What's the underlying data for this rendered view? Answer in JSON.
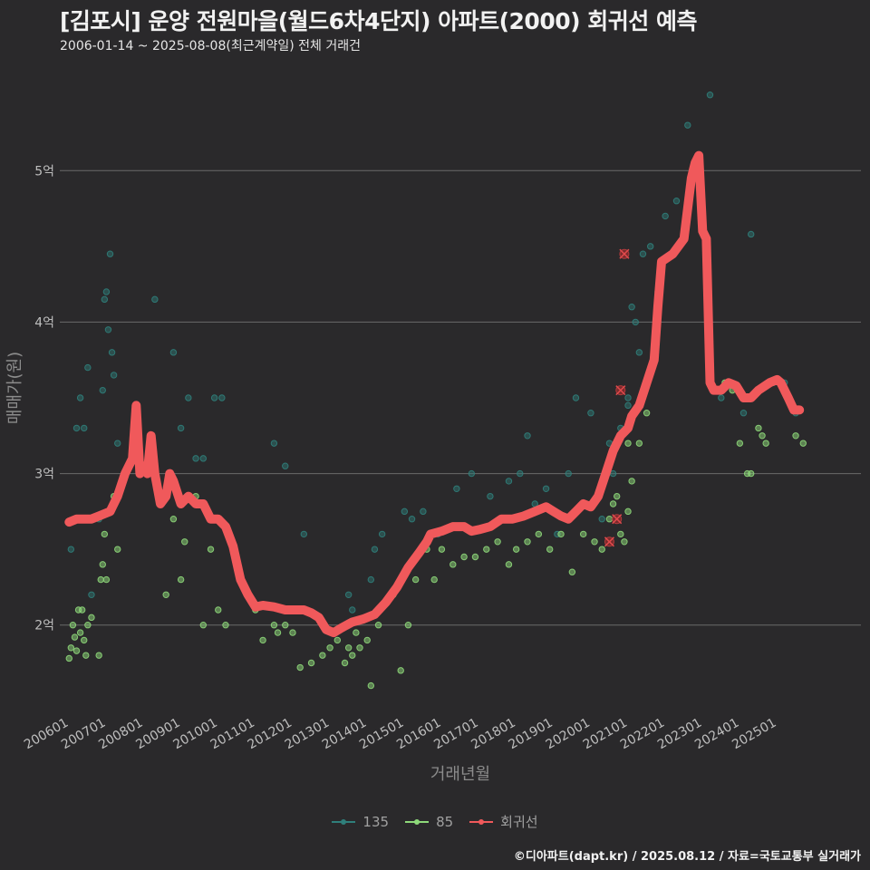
{
  "title": "[김포시] 운양 전원마을(월드6차4단지) 아파트(2000) 회귀선 예측",
  "subtitle": "2006-01-14 ~ 2025-08-08(최근계약일) 전체 거래건",
  "footer": "©디아파트(dapt.kr) / 2025.08.12 / 자료=국토교통부 실거래가",
  "legend": [
    {
      "label": "135",
      "color": "#2f7f7b"
    },
    {
      "label": "85",
      "color": "#8ed97a"
    },
    {
      "label": "회귀선",
      "color": "#f0595b"
    }
  ],
  "chart_data": {
    "type": "scatter",
    "xlabel": "거래년월",
    "ylabel": "매매가(원)",
    "xlim": [
      2005.75,
      2027.25
    ],
    "ylim": [
      1.4,
      5.6
    ],
    "yticks": [
      2,
      3,
      4,
      5
    ],
    "ytick_labels": [
      "2억",
      "3억",
      "4억",
      "5억"
    ],
    "xtick_labels": [
      "200601",
      "200701",
      "200801",
      "200901",
      "201001",
      "201101",
      "201201",
      "201301",
      "201401",
      "201501",
      "201601",
      "201701",
      "201801",
      "201901",
      "202001",
      "202101",
      "202201",
      "202301",
      "202401",
      "202501"
    ],
    "series": [
      {
        "name": "135",
        "color": "#2f7f7b",
        "points": [
          [
            2006.05,
            2.5
          ],
          [
            2006.2,
            3.3
          ],
          [
            2006.3,
            3.5
          ],
          [
            2006.4,
            3.3
          ],
          [
            2006.5,
            3.7
          ],
          [
            2006.6,
            2.2
          ],
          [
            2006.8,
            2.7
          ],
          [
            2006.9,
            3.55
          ],
          [
            2006.95,
            4.15
          ],
          [
            2007.0,
            4.2
          ],
          [
            2007.05,
            3.95
          ],
          [
            2007.1,
            4.45
          ],
          [
            2007.15,
            3.8
          ],
          [
            2007.2,
            3.65
          ],
          [
            2007.3,
            3.2
          ],
          [
            2007.5,
            3.0
          ],
          [
            2008.3,
            4.15
          ],
          [
            2008.8,
            3.8
          ],
          [
            2009.0,
            3.3
          ],
          [
            2009.2,
            3.5
          ],
          [
            2009.4,
            3.1
          ],
          [
            2009.6,
            3.1
          ],
          [
            2009.9,
            3.5
          ],
          [
            2010.1,
            3.5
          ],
          [
            2011.5,
            3.2
          ],
          [
            2011.8,
            3.05
          ],
          [
            2012.3,
            2.6
          ],
          [
            2013.5,
            2.2
          ],
          [
            2013.6,
            2.1
          ],
          [
            2014.1,
            2.3
          ],
          [
            2014.2,
            2.5
          ],
          [
            2014.4,
            2.6
          ],
          [
            2015.0,
            2.75
          ],
          [
            2015.2,
            2.7
          ],
          [
            2015.5,
            2.75
          ],
          [
            2015.9,
            2.6
          ],
          [
            2016.4,
            2.9
          ],
          [
            2016.8,
            3.0
          ],
          [
            2017.3,
            2.85
          ],
          [
            2017.8,
            2.95
          ],
          [
            2018.1,
            3.0
          ],
          [
            2018.3,
            3.25
          ],
          [
            2018.5,
            2.8
          ],
          [
            2018.8,
            2.9
          ],
          [
            2019.1,
            2.6
          ],
          [
            2019.4,
            3.0
          ],
          [
            2019.6,
            3.5
          ],
          [
            2020.0,
            3.4
          ],
          [
            2020.3,
            2.7
          ],
          [
            2020.5,
            3.2
          ],
          [
            2020.6,
            3.0
          ],
          [
            2020.8,
            3.3
          ],
          [
            2021.0,
            3.5
          ],
          [
            2021.0,
            3.45
          ],
          [
            2021.1,
            4.1
          ],
          [
            2021.2,
            4.0
          ],
          [
            2021.3,
            3.8
          ],
          [
            2021.4,
            4.45
          ],
          [
            2021.6,
            4.5
          ],
          [
            2021.8,
            4.2
          ],
          [
            2022.0,
            4.7
          ],
          [
            2022.3,
            4.8
          ],
          [
            2022.6,
            5.3
          ],
          [
            2023.2,
            5.5
          ],
          [
            2023.5,
            3.5
          ],
          [
            2024.1,
            3.4
          ],
          [
            2024.2,
            3.5
          ],
          [
            2024.3,
            4.58
          ],
          [
            2024.9,
            3.6
          ],
          [
            2025.2,
            3.6
          ],
          [
            2025.5,
            3.4
          ]
        ]
      },
      {
        "name": "85",
        "color": "#8ed97a",
        "points": [
          [
            2006.0,
            1.78
          ],
          [
            2006.05,
            1.85
          ],
          [
            2006.1,
            2.0
          ],
          [
            2006.15,
            1.92
          ],
          [
            2006.2,
            1.83
          ],
          [
            2006.25,
            2.1
          ],
          [
            2006.3,
            1.95
          ],
          [
            2006.35,
            2.1
          ],
          [
            2006.4,
            1.9
          ],
          [
            2006.45,
            1.8
          ],
          [
            2006.5,
            2.0
          ],
          [
            2006.6,
            2.05
          ],
          [
            2006.8,
            1.8
          ],
          [
            2006.85,
            2.3
          ],
          [
            2006.9,
            2.4
          ],
          [
            2006.95,
            2.6
          ],
          [
            2007.0,
            2.3
          ],
          [
            2007.1,
            2.75
          ],
          [
            2007.2,
            2.85
          ],
          [
            2007.3,
            2.5
          ],
          [
            2008.0,
            3.05
          ],
          [
            2008.6,
            2.2
          ],
          [
            2008.8,
            2.7
          ],
          [
            2009.0,
            2.3
          ],
          [
            2009.1,
            2.55
          ],
          [
            2009.4,
            2.85
          ],
          [
            2009.6,
            2.0
          ],
          [
            2009.8,
            2.5
          ],
          [
            2010.0,
            2.1
          ],
          [
            2010.2,
            2.0
          ],
          [
            2010.6,
            2.3
          ],
          [
            2011.0,
            2.1
          ],
          [
            2011.2,
            1.9
          ],
          [
            2011.5,
            2.0
          ],
          [
            2011.6,
            1.95
          ],
          [
            2011.8,
            2.0
          ],
          [
            2012.0,
            1.95
          ],
          [
            2012.2,
            1.72
          ],
          [
            2012.5,
            1.75
          ],
          [
            2012.8,
            1.8
          ],
          [
            2013.0,
            1.85
          ],
          [
            2013.2,
            1.9
          ],
          [
            2013.4,
            1.75
          ],
          [
            2013.5,
            1.85
          ],
          [
            2013.6,
            1.8
          ],
          [
            2013.7,
            1.95
          ],
          [
            2013.8,
            1.85
          ],
          [
            2014.0,
            1.9
          ],
          [
            2014.1,
            1.6
          ],
          [
            2014.3,
            2.0
          ],
          [
            2014.5,
            2.15
          ],
          [
            2014.7,
            2.2
          ],
          [
            2014.9,
            1.7
          ],
          [
            2015.1,
            2.0
          ],
          [
            2015.3,
            2.3
          ],
          [
            2015.6,
            2.5
          ],
          [
            2015.8,
            2.3
          ],
          [
            2016.0,
            2.5
          ],
          [
            2016.3,
            2.4
          ],
          [
            2016.6,
            2.45
          ],
          [
            2016.9,
            2.45
          ],
          [
            2017.2,
            2.5
          ],
          [
            2017.5,
            2.55
          ],
          [
            2017.8,
            2.4
          ],
          [
            2018.0,
            2.5
          ],
          [
            2018.3,
            2.55
          ],
          [
            2018.6,
            2.6
          ],
          [
            2018.9,
            2.5
          ],
          [
            2019.2,
            2.6
          ],
          [
            2019.5,
            2.35
          ],
          [
            2019.8,
            2.6
          ],
          [
            2020.1,
            2.55
          ],
          [
            2020.3,
            2.5
          ],
          [
            2020.5,
            2.7
          ],
          [
            2020.6,
            2.8
          ],
          [
            2020.7,
            2.85
          ],
          [
            2020.8,
            2.6
          ],
          [
            2020.9,
            2.55
          ],
          [
            2021.0,
            2.75
          ],
          [
            2021.0,
            3.2
          ],
          [
            2021.1,
            2.95
          ],
          [
            2021.3,
            3.2
          ],
          [
            2021.5,
            3.4
          ],
          [
            2023.6,
            3.6
          ],
          [
            2023.8,
            3.55
          ],
          [
            2024.0,
            3.2
          ],
          [
            2024.2,
            3.0
          ],
          [
            2024.3,
            3.0
          ],
          [
            2024.5,
            3.3
          ],
          [
            2024.6,
            3.25
          ],
          [
            2024.7,
            3.2
          ],
          [
            2025.5,
            3.25
          ],
          [
            2025.7,
            3.2
          ]
        ]
      },
      {
        "name": "회귀선",
        "color": "#f0595b",
        "line": [
          [
            2006.0,
            2.68
          ],
          [
            2006.2,
            2.7
          ],
          [
            2006.6,
            2.7
          ],
          [
            2006.8,
            2.72
          ],
          [
            2007.1,
            2.75
          ],
          [
            2007.3,
            2.85
          ],
          [
            2007.5,
            3.0
          ],
          [
            2007.7,
            3.1
          ],
          [
            2007.8,
            3.45
          ],
          [
            2007.9,
            3.0
          ],
          [
            2008.0,
            3.05
          ],
          [
            2008.1,
            3.0
          ],
          [
            2008.2,
            3.25
          ],
          [
            2008.3,
            3.0
          ],
          [
            2008.45,
            2.8
          ],
          [
            2008.6,
            2.85
          ],
          [
            2008.7,
            3.0
          ],
          [
            2008.8,
            2.95
          ],
          [
            2009.0,
            2.8
          ],
          [
            2009.2,
            2.85
          ],
          [
            2009.4,
            2.8
          ],
          [
            2009.6,
            2.8
          ],
          [
            2009.8,
            2.7
          ],
          [
            2010.0,
            2.7
          ],
          [
            2010.2,
            2.65
          ],
          [
            2010.4,
            2.52
          ],
          [
            2010.6,
            2.3
          ],
          [
            2010.8,
            2.2
          ],
          [
            2011.0,
            2.12
          ],
          [
            2011.2,
            2.13
          ],
          [
            2011.5,
            2.12
          ],
          [
            2011.8,
            2.1
          ],
          [
            2012.0,
            2.1
          ],
          [
            2012.3,
            2.1
          ],
          [
            2012.5,
            2.08
          ],
          [
            2012.7,
            2.05
          ],
          [
            2012.9,
            1.97
          ],
          [
            2013.1,
            1.95
          ],
          [
            2013.3,
            1.98
          ],
          [
            2013.6,
            2.02
          ],
          [
            2013.9,
            2.04
          ],
          [
            2014.2,
            2.07
          ],
          [
            2014.5,
            2.15
          ],
          [
            2014.8,
            2.25
          ],
          [
            2015.1,
            2.38
          ],
          [
            2015.4,
            2.48
          ],
          [
            2015.6,
            2.55
          ],
          [
            2015.7,
            2.6
          ],
          [
            2016.0,
            2.62
          ],
          [
            2016.3,
            2.65
          ],
          [
            2016.6,
            2.65
          ],
          [
            2016.8,
            2.62
          ],
          [
            2017.0,
            2.63
          ],
          [
            2017.3,
            2.65
          ],
          [
            2017.6,
            2.7
          ],
          [
            2017.9,
            2.7
          ],
          [
            2018.2,
            2.72
          ],
          [
            2018.5,
            2.75
          ],
          [
            2018.8,
            2.78
          ],
          [
            2019.0,
            2.75
          ],
          [
            2019.2,
            2.72
          ],
          [
            2019.4,
            2.7
          ],
          [
            2019.6,
            2.75
          ],
          [
            2019.8,
            2.8
          ],
          [
            2020.0,
            2.78
          ],
          [
            2020.2,
            2.85
          ],
          [
            2020.4,
            3.0
          ],
          [
            2020.6,
            3.15
          ],
          [
            2020.8,
            3.25
          ],
          [
            2021.0,
            3.3
          ],
          [
            2021.1,
            3.38
          ],
          [
            2021.3,
            3.45
          ],
          [
            2021.5,
            3.6
          ],
          [
            2021.7,
            3.75
          ],
          [
            2021.8,
            4.1
          ],
          [
            2021.9,
            4.4
          ],
          [
            2022.2,
            4.45
          ],
          [
            2022.5,
            4.55
          ],
          [
            2022.7,
            4.95
          ],
          [
            2022.8,
            5.05
          ],
          [
            2022.9,
            5.1
          ],
          [
            2023.0,
            4.6
          ],
          [
            2023.1,
            4.55
          ],
          [
            2023.2,
            3.6
          ],
          [
            2023.3,
            3.55
          ],
          [
            2023.5,
            3.55
          ],
          [
            2023.7,
            3.6
          ],
          [
            2023.9,
            3.58
          ],
          [
            2024.1,
            3.5
          ],
          [
            2024.3,
            3.5
          ],
          [
            2024.5,
            3.55
          ],
          [
            2024.8,
            3.6
          ],
          [
            2025.0,
            3.62
          ],
          [
            2025.1,
            3.6
          ],
          [
            2025.3,
            3.5
          ],
          [
            2025.45,
            3.42
          ],
          [
            2025.6,
            3.42
          ]
        ],
        "outliers": [
          [
            2020.9,
            4.45
          ],
          [
            2020.8,
            3.55
          ],
          [
            2020.7,
            2.7
          ],
          [
            2020.5,
            2.55
          ]
        ]
      }
    ]
  }
}
